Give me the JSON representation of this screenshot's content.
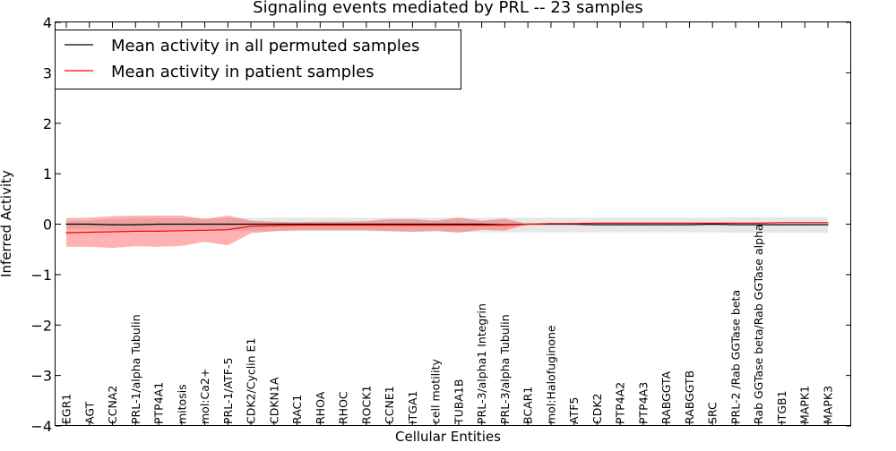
{
  "chart_data": {
    "type": "line",
    "title": "Signaling events mediated by PRL -- 23 samples",
    "xlabel": "Cellular Entities",
    "ylabel": "Inferred Activity",
    "ylim": [
      -4,
      4
    ],
    "yticks": [
      -4,
      -3,
      -2,
      -1,
      0,
      1,
      2,
      3,
      4
    ],
    "ytick_labels": [
      "−4",
      "−3",
      "−2",
      "−1",
      "0",
      "1",
      "2",
      "3",
      "4"
    ],
    "legend_position": "top-left",
    "categories": [
      "EGR1",
      "AGT",
      "CCNA2",
      "PRL-1/alpha Tubulin",
      "PTP4A1",
      "mitosis",
      "mol:Ca2+",
      "PRL-1/ATF-5",
      "CDK2/Cyclin E1",
      "CDKN1A",
      "RAC1",
      "RHOA",
      "RHOC",
      "ROCK1",
      "CCNE1",
      "ITGA1",
      "cell motility",
      "TUBA1B",
      "PRL-3/alpha1 Integrin",
      "PRL-3/alpha Tubulin",
      "BCAR1",
      "mol:Halofuginone",
      "ATF5",
      "CDK2",
      "PTP4A2",
      "PTP4A3",
      "RABGGTA",
      "RABGGTB",
      "SRC",
      "PRL-2 /Rab GGTase beta",
      "Rab GGTase beta/Rab GGTase alpha",
      "ITGB1",
      "MAPK1",
      "MAPK3"
    ],
    "series": [
      {
        "name": "Mean activity in all permuted samples",
        "color": "#000000",
        "band_color": "#bbbbbb",
        "values": [
          0.0,
          0.0,
          -0.01,
          -0.01,
          0.0,
          0.0,
          0.0,
          0.0,
          0.0,
          0.0,
          0.0,
          0.0,
          0.0,
          0.0,
          0.0,
          0.0,
          0.0,
          0.0,
          0.0,
          -0.01,
          0.0,
          0.0,
          0.0,
          -0.01,
          -0.01,
          -0.01,
          -0.01,
          -0.01,
          0.0,
          -0.01,
          -0.01,
          -0.01,
          -0.01,
          -0.01
        ],
        "upper": [
          0.05,
          0.08,
          0.1,
          0.12,
          0.12,
          0.12,
          0.12,
          0.12,
          0.13,
          0.13,
          0.13,
          0.13,
          0.13,
          0.13,
          0.13,
          0.13,
          0.13,
          0.13,
          0.13,
          0.13,
          0.13,
          0.13,
          0.13,
          0.13,
          0.13,
          0.13,
          0.13,
          0.13,
          0.13,
          0.14,
          0.14,
          0.14,
          0.14,
          0.14
        ],
        "lower": [
          -0.1,
          -0.1,
          -0.12,
          -0.12,
          -0.12,
          -0.12,
          -0.12,
          -0.12,
          -0.14,
          -0.14,
          -0.14,
          -0.14,
          -0.14,
          -0.14,
          -0.14,
          -0.15,
          -0.15,
          -0.15,
          -0.16,
          -0.16,
          -0.16,
          -0.16,
          -0.16,
          -0.16,
          -0.16,
          -0.16,
          -0.16,
          -0.16,
          -0.16,
          -0.17,
          -0.17,
          -0.17,
          -0.17,
          -0.17
        ]
      },
      {
        "name": "Mean activity in patient samples",
        "color": "#ff0000",
        "band_color": "#ff0000",
        "values": [
          -0.17,
          -0.16,
          -0.15,
          -0.14,
          -0.14,
          -0.13,
          -0.12,
          -0.11,
          -0.04,
          -0.03,
          -0.02,
          -0.02,
          -0.02,
          -0.02,
          -0.02,
          -0.02,
          -0.02,
          -0.02,
          -0.02,
          -0.02,
          0.0,
          0.01,
          0.01,
          0.02,
          0.02,
          0.02,
          0.02,
          0.02,
          0.02,
          0.02,
          0.02,
          0.03,
          0.03,
          0.03
        ],
        "upper": [
          0.12,
          0.13,
          0.16,
          0.17,
          0.17,
          0.17,
          0.1,
          0.17,
          0.07,
          0.05,
          0.04,
          0.05,
          0.05,
          0.06,
          0.1,
          0.1,
          0.07,
          0.13,
          0.07,
          0.11,
          0.0,
          0.01,
          0.01,
          0.02,
          0.02,
          0.02,
          0.02,
          0.02,
          0.02,
          0.02,
          0.02,
          0.03,
          0.03,
          0.03
        ],
        "lower": [
          -0.45,
          -0.45,
          -0.47,
          -0.44,
          -0.45,
          -0.43,
          -0.35,
          -0.42,
          -0.18,
          -0.14,
          -0.12,
          -0.12,
          -0.12,
          -0.12,
          -0.14,
          -0.15,
          -0.13,
          -0.17,
          -0.11,
          -0.13,
          0.0,
          0.01,
          0.01,
          0.02,
          0.02,
          0.02,
          0.02,
          0.02,
          0.02,
          0.02,
          0.02,
          0.03,
          0.03,
          0.03
        ]
      }
    ]
  }
}
